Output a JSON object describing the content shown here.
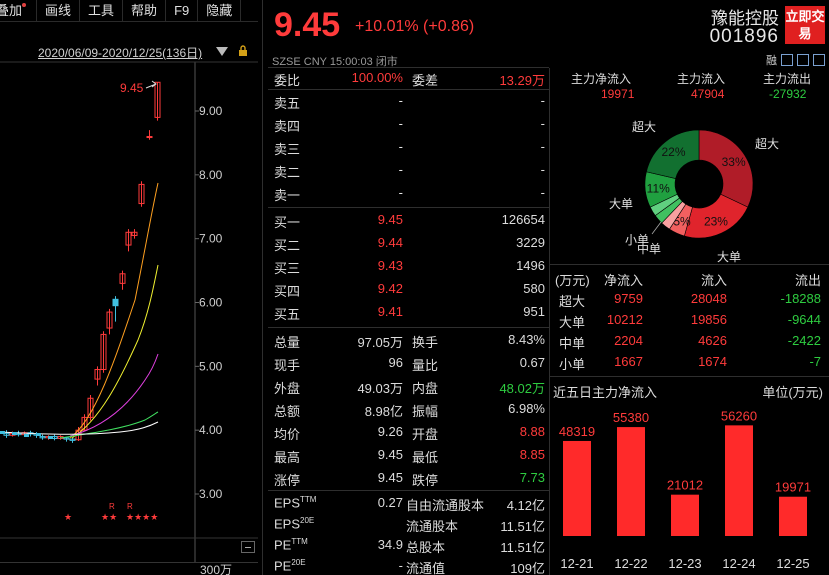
{
  "toolbar": {
    "items": [
      "叠加",
      "画线",
      "工具",
      "帮助",
      "F9",
      "隐藏"
    ]
  },
  "chart": {
    "date_range": "2020/06/09-2020/12/25(136日)",
    "price_labels": [
      "9.00",
      "8.00",
      "7.00",
      "6.00",
      "5.00",
      "4.00",
      "3.00"
    ],
    "high_marker": "9.45",
    "volume_label": "300万",
    "markers": [
      "★",
      "★★",
      "★★★★"
    ],
    "r_markers": [
      "R",
      "R"
    ]
  },
  "quote": {
    "price": "9.45",
    "change": "+10.01% (+0.86)",
    "meta": "SZSE   CNY   15:00:03   闭市",
    "stock_name": "豫能控股",
    "stock_code": "001896",
    "trade_button": "立即交易",
    "weibi_label": "委比",
    "weibi_value": "100.00%",
    "weicha_label": "委差",
    "weicha_value": "13.29万"
  },
  "asks": [
    {
      "label": "卖五",
      "price": "-",
      "vol": "-"
    },
    {
      "label": "卖四",
      "price": "-",
      "vol": "-"
    },
    {
      "label": "卖三",
      "price": "-",
      "vol": "-"
    },
    {
      "label": "卖二",
      "price": "-",
      "vol": "-"
    },
    {
      "label": "卖一",
      "price": "-",
      "vol": "-"
    }
  ],
  "bids": [
    {
      "label": "买一",
      "price": "9.45",
      "vol": "126654"
    },
    {
      "label": "买二",
      "price": "9.44",
      "vol": "3229"
    },
    {
      "label": "买三",
      "price": "9.43",
      "vol": "1496"
    },
    {
      "label": "买四",
      "price": "9.42",
      "vol": "580"
    },
    {
      "label": "买五",
      "price": "9.41",
      "vol": "951"
    }
  ],
  "stats": [
    {
      "l1": "总量",
      "v1": "97.05万",
      "c1": "white",
      "l2": "换手",
      "v2": "8.43%",
      "c2": "white"
    },
    {
      "l1": "现手",
      "v1": "96",
      "c1": "white",
      "l2": "量比",
      "v2": "0.67",
      "c2": "white"
    },
    {
      "l1": "外盘",
      "v1": "49.03万",
      "c1": "red",
      "l2": "内盘",
      "v2": "48.02万",
      "c2": "green"
    },
    {
      "l1": "总额",
      "v1": "8.98亿",
      "c1": "white",
      "l2": "振幅",
      "v2": "6.98%",
      "c2": "white"
    },
    {
      "l1": "均价",
      "v1": "9.26",
      "c1": "red",
      "l2": "开盘",
      "v2": "8.88",
      "c2": "red"
    },
    {
      "l1": "最高",
      "v1": "9.45",
      "c1": "red",
      "l2": "最低",
      "v2": "8.85",
      "c2": "red"
    },
    {
      "l1": "涨停",
      "v1": "9.45",
      "c1": "red",
      "l2": "跌停",
      "v2": "7.73",
      "c2": "green"
    }
  ],
  "fundamentals": [
    {
      "l1": "EPS",
      "s1": "TTM",
      "v1": "0.27",
      "l2": "自由流通股本",
      "v2": "4.12亿"
    },
    {
      "l1": "EPS",
      "s1": "20E",
      "v1": "",
      "l2": "流通股本",
      "v2": "11.51亿"
    },
    {
      "l1": "PE",
      "s1": "TTM",
      "v1": "34.9",
      "l2": "总股本",
      "v2": "11.51亿"
    },
    {
      "l1": "PE",
      "s1": "20E",
      "v1": "-",
      "l2": "流通值",
      "v2": "109亿"
    }
  ],
  "flow_summary": {
    "headers": [
      "主力净流入",
      "主力流入",
      "主力流出"
    ],
    "values": [
      "19971",
      "47904",
      "-27932"
    ]
  },
  "pie": {
    "slices": [
      {
        "name": "超大",
        "pct": 33,
        "label": "33%",
        "color": "#b01c28"
      },
      {
        "name": "大单",
        "pct": 23,
        "label": "23%",
        "color": "#e0242c"
      },
      {
        "name": "中单",
        "pct": 5,
        "label": "5%",
        "color": "#f26060"
      },
      {
        "name": "小单",
        "pct": 3,
        "label": "",
        "color": "#f8a0a0"
      },
      {
        "name": "小单",
        "pct": 3,
        "label": "",
        "color": "#40c060"
      },
      {
        "name": "中单",
        "pct": 3,
        "label": "",
        "color": "#60d080"
      },
      {
        "name": "大单",
        "pct": 11,
        "label": "11%",
        "color": "#20a040"
      },
      {
        "name": "超大",
        "pct": 22,
        "label": "22%",
        "color": "#127030"
      }
    ],
    "labels": {
      "top_left": "超大",
      "top_right": "超大",
      "left": "大单",
      "bottom_right": "大单",
      "small": "小单",
      "mid": "中单"
    }
  },
  "flow_table": {
    "headers": [
      "(万元)",
      "净流入",
      "流入",
      "流出"
    ],
    "rows": [
      {
        "name": "超大",
        "net": "9759",
        "in": "28048",
        "out": "-18288"
      },
      {
        "name": "大单",
        "net": "10212",
        "in": "19856",
        "out": "-9644"
      },
      {
        "name": "中单",
        "net": "2204",
        "in": "4626",
        "out": "-2422"
      },
      {
        "name": "小单",
        "net": "1667",
        "in": "1674",
        "out": "-7"
      }
    ]
  },
  "five_day": {
    "title": "近五日主力净流入",
    "unit": "单位(万元)"
  },
  "chart_data": {
    "type": "bar",
    "title": "近五日主力净流入",
    "categories": [
      "12-21",
      "12-22",
      "12-23",
      "12-24",
      "12-25"
    ],
    "values": [
      48319,
      55380,
      21012,
      56260,
      19971
    ],
    "ylabel": "单位(万元)",
    "ylim": [
      0,
      60000
    ],
    "color": "#ff2a2a"
  },
  "colors": {
    "up": "#ff3b3b",
    "down": "#2ecc40",
    "panel_bg": "#000000"
  }
}
